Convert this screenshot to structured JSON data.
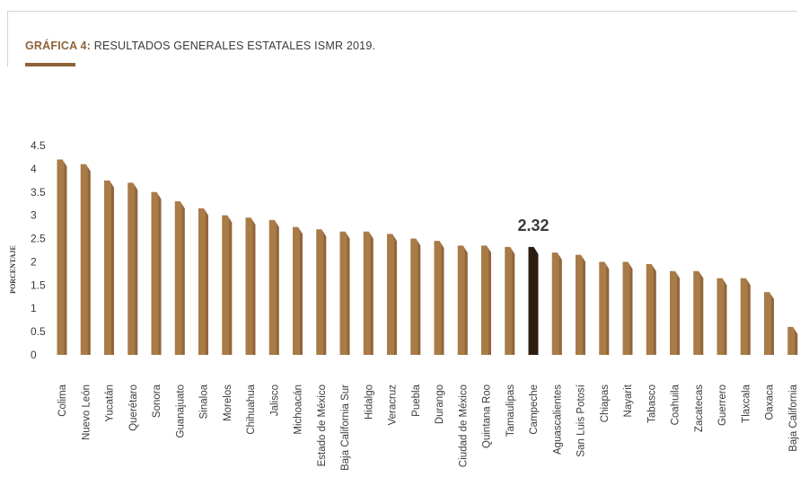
{
  "header": {
    "title_prefix": "GRÁFICA 4:",
    "title_text": " RESULTADOS GENERALES ESTATALES ISMR 2019."
  },
  "colors": {
    "bar": "#a87b47",
    "bar_dark": "#7d5630",
    "highlight": "#2b1d12",
    "accent": "#8d6339",
    "text": "#3a3a3a"
  },
  "chart_data": {
    "type": "bar",
    "ylabel": "PORCENTAJE",
    "ylim": [
      0,
      4.5
    ],
    "yticks": [
      {
        "value": 0,
        "label": "0"
      },
      {
        "value": 0.5,
        "label": "0.5"
      },
      {
        "value": 1,
        "label": "1"
      },
      {
        "value": 1.5,
        "label": "1.5"
      },
      {
        "value": 2,
        "label": "2"
      },
      {
        "value": 2.5,
        "label": "2.5"
      },
      {
        "value": 3,
        "label": "3"
      },
      {
        "value": 3.5,
        "label": "3.5"
      },
      {
        "value": 4,
        "label": "4"
      },
      {
        "value": 4.5,
        "label": "4.5"
      }
    ],
    "grid": false,
    "categories": [
      "Colima",
      "Nuevo León",
      "Yucatán",
      "Querétaro",
      "Sonora",
      "Guanajuato",
      "Sinaloa",
      "Morelos",
      "Chihuahua",
      "Jalisco",
      "Michoacán",
      "Estado de México",
      "Baja California Sur",
      "Hidalgo",
      "Veracruz",
      "Puebla",
      "Durango",
      "Ciudad de México",
      "Quintana Roo",
      "Tamaulipas",
      "Campeche",
      "Aguascalientes",
      "San Luis Potosí",
      "Chiapas",
      "Nayarit",
      "Tabasco",
      "Coahuila",
      "Zacatecas",
      "Guerrero",
      "Tlaxcala",
      "Oaxaca",
      "Baja California"
    ],
    "values": [
      4.2,
      4.1,
      3.75,
      3.7,
      3.5,
      3.3,
      3.15,
      3.0,
      2.95,
      2.9,
      2.75,
      2.7,
      2.65,
      2.65,
      2.6,
      2.5,
      2.45,
      2.35,
      2.35,
      2.32,
      2.32,
      2.2,
      2.15,
      2.0,
      2.0,
      1.95,
      1.8,
      1.8,
      1.65,
      1.65,
      1.35,
      0.6
    ],
    "highlight_index": 20,
    "annotations": [
      {
        "category": "Campeche",
        "text": "2.32"
      }
    ]
  }
}
